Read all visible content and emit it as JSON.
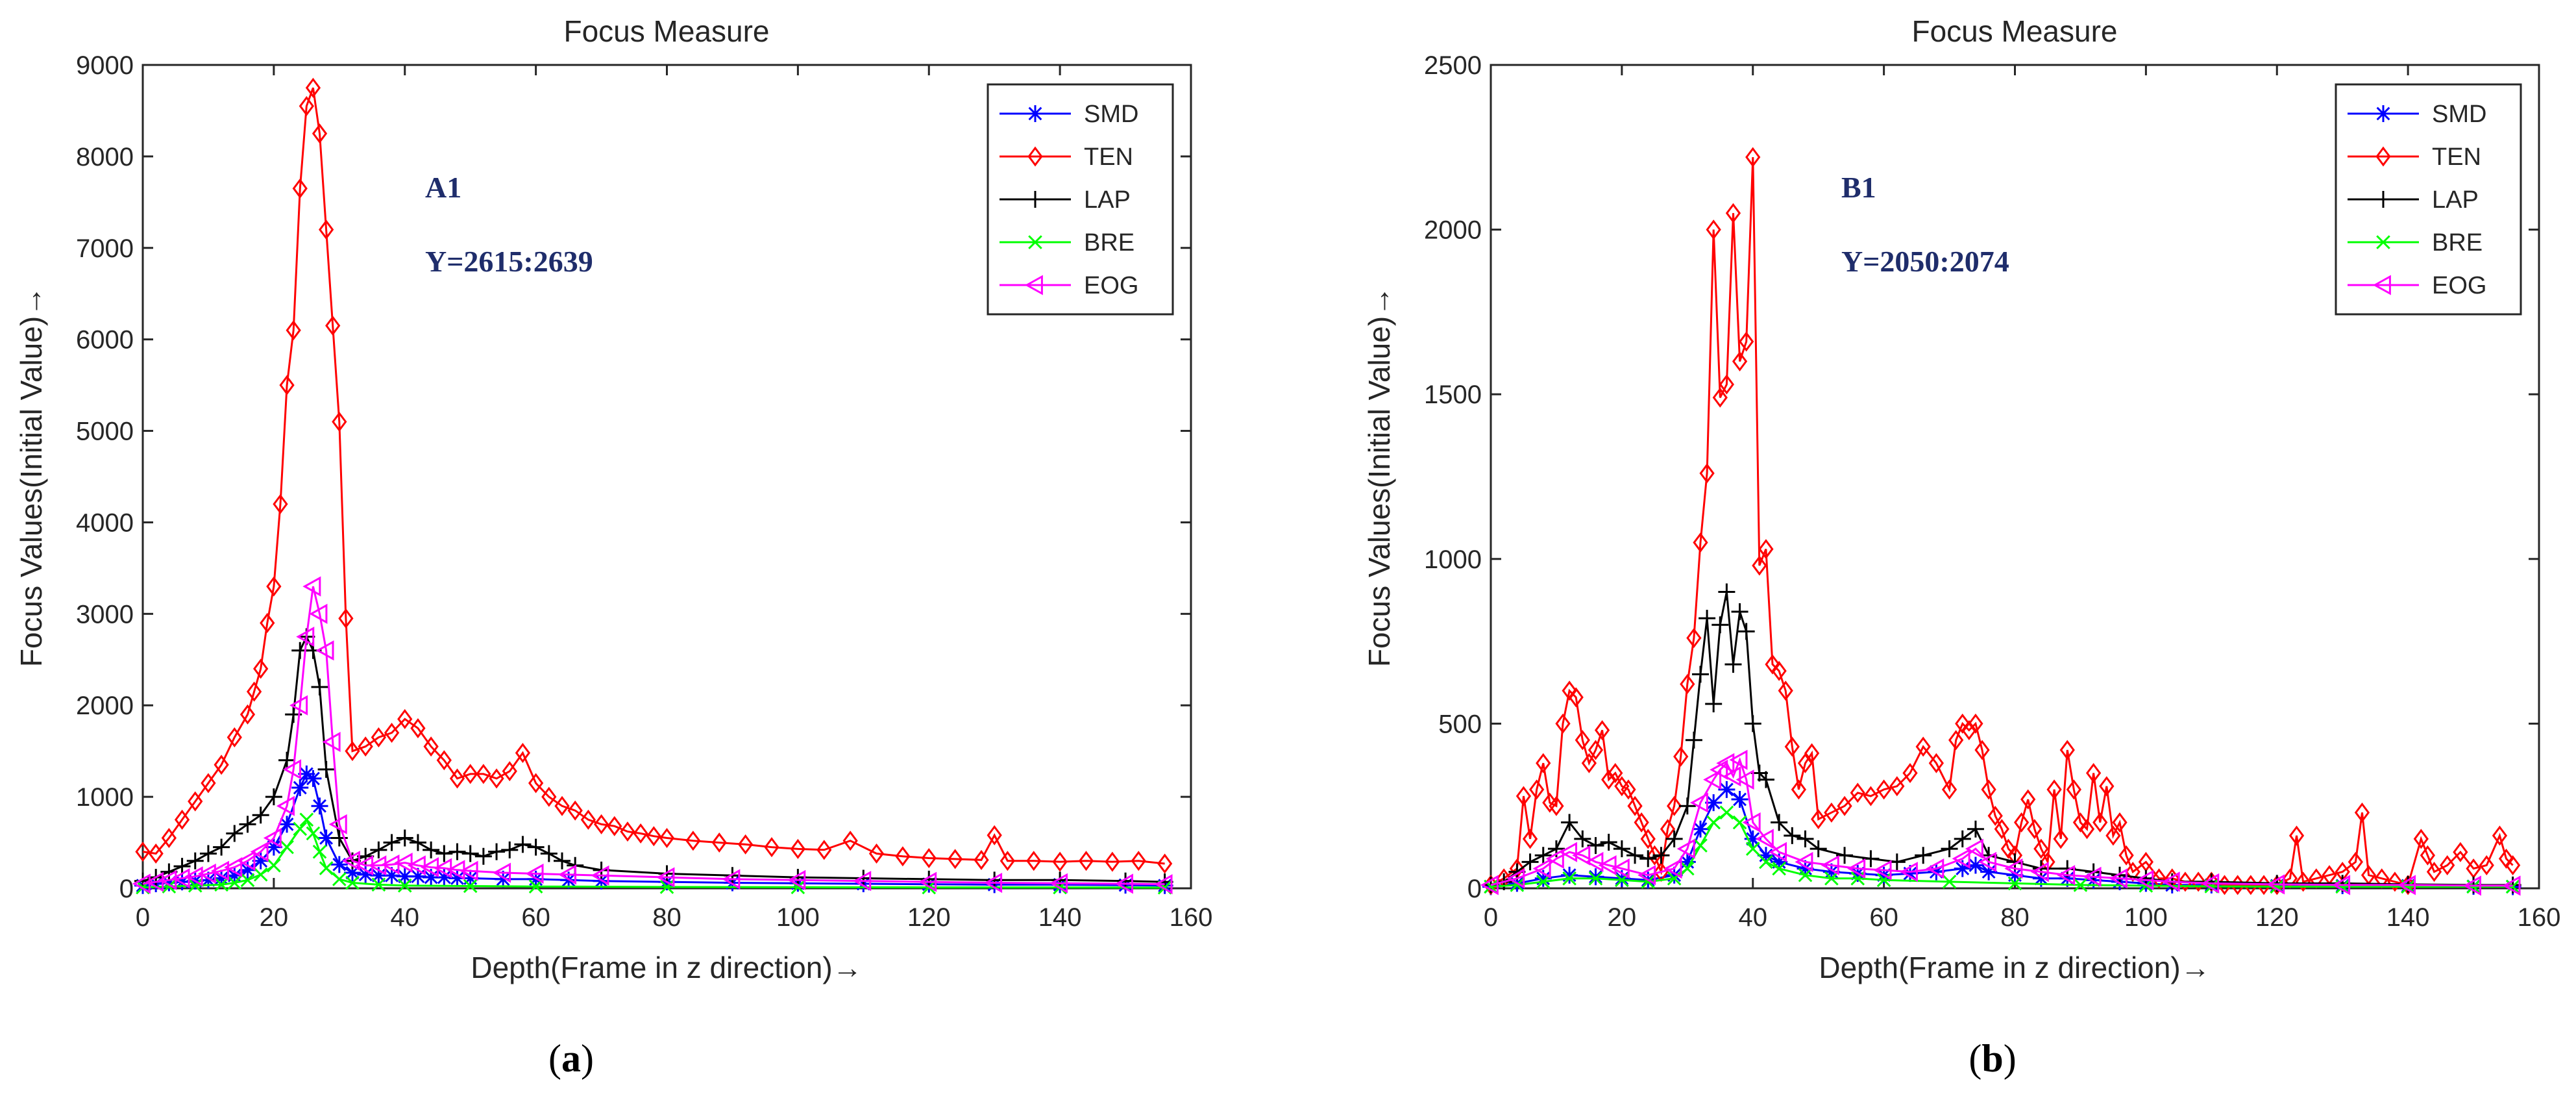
{
  "captions": [
    "a",
    "b"
  ],
  "chart_data": [
    {
      "type": "line",
      "title": "Focus Measure",
      "xlabel": "Depth(Frame in z direction)→",
      "ylabel": "Focus Values(Initial Value)→",
      "xlim": [
        0,
        160
      ],
      "ylim": [
        0,
        9000
      ],
      "xticks": [
        0,
        20,
        40,
        60,
        80,
        100,
        120,
        140,
        160
      ],
      "yticks": [
        0,
        1000,
        2000,
        3000,
        4000,
        5000,
        6000,
        7000,
        8000,
        9000
      ],
      "grid": false,
      "legend_position": "top-right",
      "annotations": [
        "A1",
        "Y=2615:2639"
      ],
      "series": [
        {
          "name": "SMD",
          "color": "#0000ff",
          "marker": "asterisk",
          "x": [
            0,
            2,
            4,
            6,
            8,
            10,
            12,
            14,
            16,
            18,
            20,
            22,
            24,
            25,
            26,
            27,
            28,
            30,
            32,
            34,
            36,
            38,
            40,
            42,
            44,
            46,
            48,
            50,
            55,
            60,
            65,
            70,
            80,
            90,
            100,
            110,
            120,
            130,
            140,
            150,
            156
          ],
          "y": [
            30,
            50,
            60,
            70,
            80,
            90,
            110,
            140,
            200,
            300,
            450,
            700,
            1100,
            1250,
            1200,
            900,
            550,
            260,
            170,
            150,
            140,
            140,
            130,
            130,
            120,
            120,
            110,
            110,
            100,
            100,
            90,
            80,
            70,
            60,
            55,
            50,
            45,
            40,
            40,
            35,
            30
          ]
        },
        {
          "name": "TEN",
          "color": "#ff0000",
          "marker": "diamond",
          "x": [
            0,
            2,
            4,
            6,
            8,
            10,
            12,
            14,
            16,
            17,
            18,
            19,
            20,
            21,
            22,
            23,
            24,
            25,
            26,
            27,
            28,
            29,
            30,
            31,
            32,
            34,
            36,
            38,
            40,
            42,
            44,
            46,
            48,
            50,
            52,
            54,
            56,
            58,
            60,
            62,
            64,
            66,
            68,
            70,
            72,
            74,
            76,
            78,
            80,
            84,
            88,
            92,
            96,
            100,
            104,
            108,
            112,
            116,
            120,
            124,
            128,
            130,
            132,
            136,
            140,
            144,
            148,
            152,
            156
          ],
          "y": [
            400,
            380,
            550,
            750,
            950,
            1150,
            1350,
            1650,
            1900,
            2150,
            2400,
            2900,
            3300,
            4200,
            5500,
            6100,
            7650,
            8550,
            8750,
            8250,
            7200,
            6150,
            5100,
            2950,
            1500,
            1550,
            1650,
            1700,
            1850,
            1750,
            1550,
            1400,
            1200,
            1250,
            1250,
            1200,
            1280,
            1480,
            1150,
            1000,
            900,
            850,
            750,
            700,
            680,
            620,
            600,
            570,
            550,
            520,
            500,
            480,
            450,
            430,
            420,
            520,
            380,
            350,
            330,
            320,
            310,
            580,
            300,
            300,
            290,
            300,
            290,
            300,
            270
          ]
        },
        {
          "name": "LAP",
          "color": "#000000",
          "marker": "plus",
          "x": [
            0,
            2,
            4,
            6,
            8,
            10,
            12,
            14,
            16,
            18,
            20,
            22,
            23,
            24,
            25,
            26,
            27,
            28,
            30,
            32,
            34,
            36,
            38,
            40,
            42,
            44,
            46,
            48,
            50,
            52,
            54,
            56,
            58,
            60,
            62,
            64,
            66,
            70,
            80,
            90,
            100,
            110,
            120,
            130,
            140,
            150,
            156
          ],
          "y": [
            80,
            120,
            180,
            240,
            300,
            380,
            450,
            600,
            700,
            800,
            1000,
            1400,
            1900,
            2600,
            2750,
            2600,
            2200,
            1300,
            550,
            300,
            350,
            420,
            500,
            550,
            500,
            420,
            380,
            400,
            380,
            350,
            400,
            420,
            480,
            450,
            380,
            300,
            250,
            200,
            160,
            140,
            120,
            110,
            100,
            90,
            90,
            80,
            70
          ]
        },
        {
          "name": "BRE",
          "color": "#00ff00",
          "marker": "x",
          "x": [
            0,
            4,
            8,
            12,
            14,
            16,
            18,
            20,
            22,
            24,
            25,
            26,
            27,
            28,
            30,
            32,
            36,
            40,
            50,
            60,
            80,
            100,
            120,
            140,
            156
          ],
          "y": [
            10,
            20,
            30,
            40,
            60,
            90,
            150,
            250,
            450,
            650,
            750,
            600,
            400,
            220,
            100,
            60,
            40,
            30,
            25,
            20,
            15,
            12,
            10,
            10,
            8
          ]
        },
        {
          "name": "EOG",
          "color": "#ff00ff",
          "marker": "triangle-left",
          "x": [
            0,
            2,
            4,
            6,
            8,
            10,
            12,
            14,
            16,
            18,
            20,
            22,
            23,
            24,
            25,
            26,
            27,
            28,
            29,
            30,
            32,
            34,
            36,
            38,
            40,
            42,
            44,
            46,
            48,
            50,
            55,
            60,
            65,
            70,
            80,
            90,
            100,
            110,
            120,
            130,
            140,
            150,
            156
          ],
          "y": [
            50,
            70,
            90,
            110,
            130,
            160,
            190,
            230,
            300,
            400,
            550,
            900,
            1300,
            2000,
            2750,
            3300,
            3000,
            2600,
            1600,
            700,
            300,
            250,
            250,
            260,
            280,
            250,
            230,
            220,
            200,
            190,
            170,
            160,
            150,
            140,
            120,
            100,
            90,
            80,
            70,
            60,
            55,
            50,
            45
          ]
        }
      ]
    },
    {
      "type": "line",
      "title": "Focus Measure",
      "xlabel": "Depth(Frame in z direction)→",
      "ylabel": "Focus Values(Initial Value)→",
      "xlim": [
        0,
        160
      ],
      "ylim": [
        0,
        2500
      ],
      "xticks": [
        0,
        20,
        40,
        60,
        80,
        100,
        120,
        140,
        160
      ],
      "yticks": [
        0,
        500,
        1000,
        1500,
        2000,
        2500
      ],
      "grid": false,
      "legend_position": "top-right",
      "annotations": [
        "B1",
        "Y=2050:2074"
      ],
      "series": [
        {
          "name": "SMD",
          "color": "#0000ff",
          "marker": "asterisk",
          "x": [
            0,
            4,
            8,
            12,
            16,
            20,
            24,
            28,
            30,
            32,
            34,
            36,
            38,
            40,
            42,
            44,
            48,
            52,
            56,
            60,
            64,
            68,
            72,
            74,
            76,
            80,
            84,
            88,
            92,
            96,
            100,
            104,
            110,
            120,
            130,
            140,
            150,
            156
          ],
          "y": [
            5,
            15,
            30,
            40,
            35,
            30,
            25,
            40,
            80,
            180,
            260,
            300,
            270,
            150,
            100,
            80,
            60,
            50,
            45,
            40,
            45,
            50,
            60,
            70,
            50,
            40,
            30,
            30,
            25,
            20,
            15,
            10,
            10,
            8,
            8,
            8,
            6,
            5
          ]
        },
        {
          "name": "TEN",
          "color": "#ff0000",
          "marker": "diamond",
          "x": [
            0,
            2,
            4,
            5,
            6,
            7,
            8,
            9,
            10,
            11,
            12,
            13,
            14,
            15,
            16,
            17,
            18,
            19,
            20,
            21,
            22,
            23,
            24,
            25,
            26,
            27,
            28,
            29,
            30,
            31,
            32,
            33,
            34,
            35,
            36,
            37,
            38,
            39,
            40,
            41,
            42,
            43,
            44,
            45,
            46,
            47,
            48,
            49,
            50,
            52,
            54,
            56,
            58,
            60,
            62,
            64,
            66,
            68,
            70,
            71,
            72,
            73,
            74,
            75,
            76,
            77,
            78,
            79,
            80,
            81,
            82,
            83,
            84,
            85,
            86,
            87,
            88,
            89,
            90,
            91,
            92,
            93,
            94,
            95,
            96,
            97,
            98,
            100,
            102,
            104,
            106,
            108,
            110,
            112,
            114,
            116,
            118,
            120,
            122,
            123,
            124,
            126,
            128,
            130,
            132,
            133,
            134,
            136,
            138,
            140,
            142,
            143,
            144,
            146,
            148,
            150,
            152,
            154,
            155,
            156
          ],
          "y": [
            10,
            30,
            60,
            280,
            150,
            300,
            380,
            260,
            250,
            500,
            600,
            580,
            450,
            380,
            420,
            480,
            330,
            350,
            310,
            300,
            250,
            200,
            150,
            100,
            50,
            180,
            250,
            400,
            620,
            760,
            1050,
            1260,
            2000,
            1490,
            1530,
            2050,
            1600,
            1660,
            2220,
            980,
            1030,
            680,
            660,
            600,
            430,
            300,
            380,
            410,
            210,
            230,
            250,
            290,
            280,
            300,
            310,
            350,
            430,
            380,
            300,
            450,
            500,
            480,
            500,
            420,
            300,
            220,
            180,
            120,
            100,
            200,
            270,
            180,
            120,
            80,
            300,
            150,
            420,
            300,
            200,
            180,
            350,
            200,
            310,
            160,
            200,
            100,
            50,
            80,
            30,
            30,
            20,
            20,
            20,
            10,
            10,
            10,
            10,
            10,
            30,
            160,
            20,
            30,
            40,
            50,
            80,
            230,
            40,
            30,
            20,
            10,
            150,
            100,
            50,
            70,
            110,
            60,
            70,
            160,
            90,
            70
          ]
        },
        {
          "name": "LAP",
          "color": "#000000",
          "marker": "plus",
          "x": [
            0,
            2,
            4,
            6,
            8,
            10,
            12,
            14,
            16,
            18,
            20,
            22,
            24,
            26,
            28,
            30,
            31,
            32,
            33,
            34,
            35,
            36,
            37,
            38,
            39,
            40,
            41,
            42,
            44,
            46,
            48,
            50,
            54,
            58,
            62,
            66,
            70,
            72,
            74,
            76,
            80,
            84,
            88,
            92,
            96,
            100,
            104,
            110,
            120,
            130,
            140,
            150,
            156
          ],
          "y": [
            10,
            20,
            50,
            80,
            100,
            120,
            200,
            150,
            130,
            140,
            120,
            100,
            90,
            100,
            150,
            250,
            450,
            650,
            820,
            560,
            800,
            900,
            680,
            840,
            780,
            500,
            350,
            330,
            200,
            160,
            150,
            120,
            100,
            90,
            80,
            100,
            120,
            150,
            180,
            100,
            80,
            60,
            60,
            50,
            40,
            30,
            20,
            20,
            15,
            15,
            12,
            10,
            10
          ]
        },
        {
          "name": "BRE",
          "color": "#00ff00",
          "marker": "x",
          "x": [
            0,
            4,
            8,
            12,
            16,
            20,
            24,
            28,
            30,
            32,
            34,
            36,
            38,
            40,
            42,
            44,
            48,
            52,
            56,
            60,
            70,
            80,
            90,
            100,
            110,
            120,
            130,
            140,
            150,
            156
          ],
          "y": [
            5,
            10,
            20,
            30,
            30,
            25,
            20,
            30,
            60,
            130,
            200,
            230,
            200,
            120,
            80,
            60,
            40,
            30,
            30,
            25,
            20,
            15,
            10,
            8,
            6,
            5,
            5,
            5,
            5,
            5
          ]
        },
        {
          "name": "EOG",
          "color": "#ff00ff",
          "marker": "triangle-left",
          "x": [
            0,
            4,
            8,
            10,
            12,
            14,
            16,
            18,
            20,
            24,
            28,
            30,
            32,
            34,
            35,
            36,
            37,
            38,
            39,
            40,
            42,
            44,
            48,
            52,
            56,
            60,
            64,
            68,
            72,
            74,
            76,
            80,
            84,
            88,
            92,
            96,
            100,
            104,
            110,
            120,
            130,
            140,
            150,
            156
          ],
          "y": [
            10,
            30,
            60,
            90,
            110,
            100,
            80,
            70,
            60,
            40,
            60,
            120,
            260,
            330,
            360,
            380,
            340,
            390,
            330,
            200,
            150,
            110,
            80,
            70,
            60,
            55,
            50,
            60,
            90,
            120,
            80,
            60,
            50,
            40,
            35,
            30,
            25,
            20,
            15,
            12,
            10,
            10,
            8,
            8
          ]
        }
      ]
    }
  ]
}
